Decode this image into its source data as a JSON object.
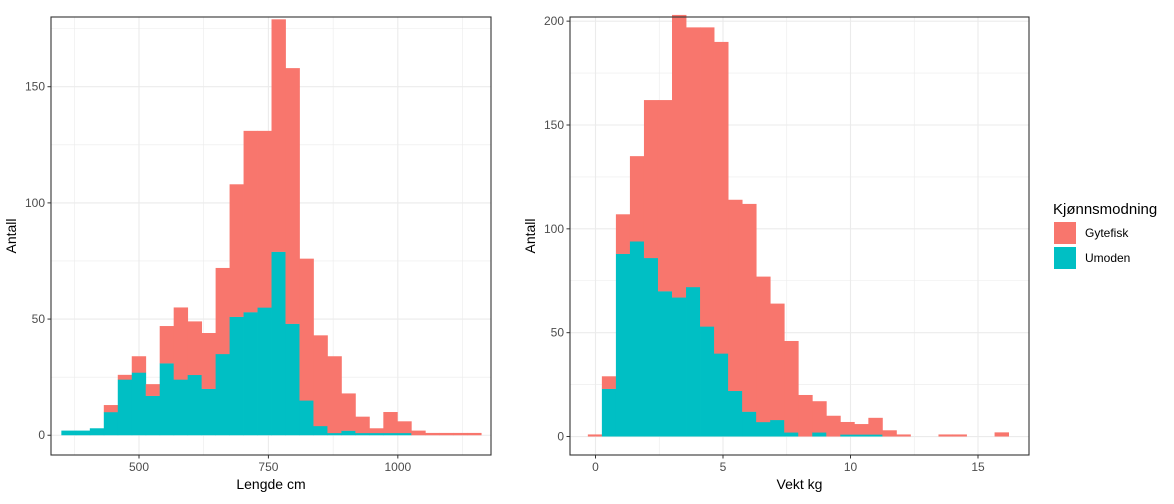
{
  "colors": {
    "gytefisk": "#f8766d",
    "umoden": "#00bfc4",
    "grid": "#ebebeb",
    "panel_border": "#333333",
    "tick_text": "#4d4d4d"
  },
  "legend": {
    "title": "Kjønnsmodning",
    "entries": [
      {
        "label": "Gytefisk",
        "color": "#f8766d"
      },
      {
        "label": "Umoden",
        "color": "#00bfc4"
      }
    ]
  },
  "chart_data": [
    {
      "type": "histogram-stacked",
      "xlabel": "Lengde cm",
      "ylabel": "Antall",
      "xlim": [
        330,
        1180
      ],
      "ylim": [
        -8.5,
        180
      ],
      "x_ticks": [
        500,
        750,
        1000
      ],
      "x_tick_labels": [
        "500",
        "750",
        "1000"
      ],
      "y_ticks": [
        0,
        50,
        100,
        150
      ],
      "y_tick_labels": [
        "0",
        "50",
        "100",
        "150"
      ],
      "bins": {
        "edges": [
          350,
          378,
          405,
          432,
          459,
          486,
          513,
          540,
          567,
          594,
          621,
          648,
          675,
          702,
          729,
          756,
          783,
          810,
          837,
          864,
          891,
          918,
          945,
          972,
          999,
          1026,
          1053,
          1080,
          1107,
          1134,
          1161
        ],
        "series": [
          {
            "name": "Umoden",
            "values": [
              2,
              2,
              3,
              10,
              24,
              27,
              17,
              31,
              24,
              26,
              20,
              35,
              51,
              53,
              55,
              79,
              48,
              15,
              4,
              1,
              2,
              1,
              1,
              1,
              1,
              0,
              0,
              0,
              0,
              0
            ]
          },
          {
            "name": "Gytefisk",
            "values": [
              0,
              0,
              0,
              3,
              2,
              7,
              5,
              16,
              31,
              23,
              24,
              37,
              57,
              78,
              76,
              100,
              110,
              61,
              39,
              33,
              16,
              7,
              2,
              9,
              5,
              2,
              1,
              1,
              1,
              1
            ]
          }
        ]
      }
    },
    {
      "type": "histogram-stacked",
      "xlabel": "Vekt kg",
      "ylabel": "Antall",
      "xlim": [
        -1,
        17
      ],
      "ylim": [
        -8.9,
        202
      ],
      "x_ticks": [
        0,
        5,
        10,
        15
      ],
      "x_tick_labels": [
        "0",
        "5",
        "10",
        "15"
      ],
      "y_ticks": [
        0,
        50,
        100,
        150,
        200
      ],
      "y_tick_labels": [
        "0",
        "50",
        "100",
        "150",
        "200"
      ],
      "bins": {
        "edges": [
          -0.3,
          0.25,
          0.8,
          1.35,
          1.9,
          2.45,
          3.0,
          3.55,
          4.1,
          4.65,
          5.2,
          5.75,
          6.3,
          6.85,
          7.4,
          7.95,
          8.5,
          9.05,
          9.6,
          10.15,
          10.7,
          11.25,
          11.8,
          12.35,
          12.9,
          13.45,
          14.0,
          14.55,
          15.1,
          15.65,
          16.2
        ],
        "series": [
          {
            "name": "Umoden",
            "values": [
              0,
              23,
              88,
              94,
              86,
              70,
              67,
              72,
              53,
              40,
              22,
              12,
              7,
              8,
              2,
              0,
              2,
              0,
              1,
              1,
              1,
              0,
              0,
              0,
              0,
              0,
              0,
              0,
              0,
              0
            ]
          },
          {
            "name": "Gytefisk",
            "values": [
              1,
              6,
              19,
              41,
              76,
              92,
              136,
              125,
              144,
              150,
              92,
              100,
              70,
              56,
              44,
              20,
              15,
              10,
              6,
              5,
              8,
              3,
              1,
              0,
              0,
              1,
              1,
              0,
              0,
              2
            ]
          }
        ]
      }
    }
  ]
}
